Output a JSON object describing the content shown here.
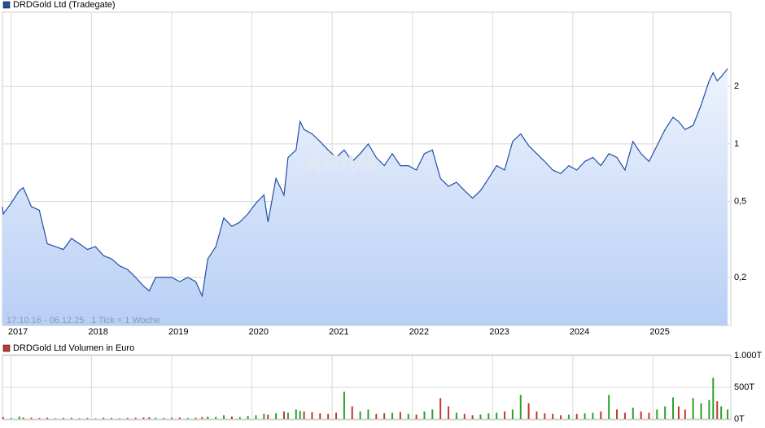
{
  "chart_data": [
    {
      "type": "line",
      "watermark": "ARIVA",
      "period_label": "17.10.16 - 06.12.25",
      "tick_label": "1 Tick = 1 Woche",
      "log_y": true,
      "grid": true,
      "xlim": [
        2016.89,
        2025.97
      ],
      "xticks": [
        2017,
        2018,
        2019,
        2020,
        2021,
        2022,
        2023,
        2024,
        2025
      ],
      "ylim": [
        0.112,
        4.9
      ],
      "yticks": [
        {
          "value": 0.2,
          "label": "0,2"
        },
        {
          "value": 0.5,
          "label": "0,5"
        },
        1,
        2
      ],
      "x": [
        2016.8,
        2016.9,
        2017.0,
        2017.1,
        2017.15,
        2017.25,
        2017.35,
        2017.45,
        2017.55,
        2017.65,
        2017.75,
        2017.85,
        2017.95,
        2018.05,
        2018.15,
        2018.25,
        2018.35,
        2018.45,
        2018.55,
        2018.65,
        2018.72,
        2018.8,
        2018.9,
        2019.0,
        2019.1,
        2019.2,
        2019.3,
        2019.38,
        2019.45,
        2019.55,
        2019.65,
        2019.75,
        2019.85,
        2019.95,
        2020.05,
        2020.15,
        2020.2,
        2020.3,
        2020.4,
        2020.45,
        2020.55,
        2020.6,
        2020.65,
        2020.75,
        2020.85,
        2020.95,
        2021.05,
        2021.15,
        2021.25,
        2021.35,
        2021.45,
        2021.55,
        2021.65,
        2021.75,
        2021.85,
        2021.95,
        2022.05,
        2022.15,
        2022.25,
        2022.35,
        2022.45,
        2022.55,
        2022.65,
        2022.75,
        2022.85,
        2022.95,
        2023.05,
        2023.15,
        2023.25,
        2023.35,
        2023.45,
        2023.55,
        2023.65,
        2023.75,
        2023.85,
        2023.95,
        2024.05,
        2024.15,
        2024.25,
        2024.35,
        2024.45,
        2024.55,
        2024.65,
        2024.75,
        2024.85,
        2024.95,
        2025.05,
        2025.15,
        2025.25,
        2025.32,
        2025.4,
        2025.5,
        2025.6,
        2025.7,
        2025.75,
        2025.8,
        2025.85,
        2025.93
      ],
      "series": [
        {
          "name": "DRDGold Ltd (Tradegate)",
          "color": "#1f4fa8",
          "values": [
            0.47,
            0.43,
            0.49,
            0.57,
            0.59,
            0.47,
            0.45,
            0.3,
            0.29,
            0.28,
            0.32,
            0.3,
            0.28,
            0.29,
            0.26,
            0.25,
            0.23,
            0.22,
            0.2,
            0.18,
            0.17,
            0.2,
            0.2,
            0.2,
            0.19,
            0.2,
            0.19,
            0.16,
            0.25,
            0.29,
            0.41,
            0.37,
            0.39,
            0.43,
            0.49,
            0.54,
            0.39,
            0.66,
            0.54,
            0.85,
            0.93,
            1.31,
            1.19,
            1.13,
            1.03,
            0.93,
            0.85,
            0.93,
            0.81,
            0.89,
            1.0,
            0.85,
            0.77,
            0.89,
            0.77,
            0.77,
            0.73,
            0.89,
            0.93,
            0.66,
            0.6,
            0.63,
            0.57,
            0.52,
            0.57,
            0.66,
            0.77,
            0.73,
            1.03,
            1.13,
            0.98,
            0.89,
            0.81,
            0.73,
            0.7,
            0.77,
            0.73,
            0.81,
            0.85,
            0.77,
            0.89,
            0.85,
            0.73,
            1.03,
            0.89,
            0.81,
            0.98,
            1.19,
            1.38,
            1.31,
            1.19,
            1.25,
            1.6,
            2.14,
            2.36,
            2.14,
            2.25,
            2.48
          ]
        }
      ]
    },
    {
      "type": "bar",
      "up_color": "#2ca02c",
      "grid": true,
      "xlim": [
        2016.89,
        2025.97
      ],
      "xticks": [
        2017,
        2018,
        2019,
        2020,
        2021,
        2022,
        2023,
        2024,
        2025
      ],
      "ylim": [
        0,
        1000
      ],
      "yticks": [
        {
          "value": 0,
          "label": "0T"
        },
        {
          "value": 500,
          "label": "500T"
        },
        {
          "value": 1000,
          "label": "1.000T"
        }
      ],
      "x": [
        2016.8,
        2016.9,
        2017.0,
        2017.1,
        2017.15,
        2017.25,
        2017.35,
        2017.45,
        2017.55,
        2017.65,
        2017.75,
        2017.85,
        2017.95,
        2018.05,
        2018.15,
        2018.25,
        2018.35,
        2018.45,
        2018.55,
        2018.65,
        2018.72,
        2018.8,
        2018.9,
        2019.0,
        2019.1,
        2019.2,
        2019.3,
        2019.38,
        2019.45,
        2019.55,
        2019.65,
        2019.75,
        2019.85,
        2019.95,
        2020.05,
        2020.15,
        2020.2,
        2020.3,
        2020.4,
        2020.45,
        2020.55,
        2020.6,
        2020.65,
        2020.75,
        2020.85,
        2020.95,
        2021.05,
        2021.15,
        2021.25,
        2021.35,
        2021.45,
        2021.55,
        2021.65,
        2021.75,
        2021.85,
        2021.95,
        2022.05,
        2022.15,
        2022.25,
        2022.35,
        2022.45,
        2022.55,
        2022.65,
        2022.75,
        2022.85,
        2022.95,
        2023.05,
        2023.15,
        2023.25,
        2023.35,
        2023.45,
        2023.55,
        2023.65,
        2023.75,
        2023.85,
        2023.95,
        2024.05,
        2024.15,
        2024.25,
        2024.35,
        2024.45,
        2024.55,
        2024.65,
        2024.75,
        2024.85,
        2024.95,
        2025.05,
        2025.15,
        2025.25,
        2025.32,
        2025.4,
        2025.5,
        2025.6,
        2025.7,
        2025.75,
        2025.8,
        2025.85,
        2025.93
      ],
      "series": [
        {
          "name": "DRDGold Ltd Volumen in Euro",
          "color": "#c0392b",
          "values": [
            20,
            30,
            15,
            40,
            25,
            20,
            15,
            20,
            10,
            15,
            20,
            10,
            15,
            10,
            20,
            15,
            10,
            15,
            20,
            25,
            30,
            20,
            15,
            20,
            25,
            15,
            20,
            30,
            40,
            35,
            60,
            40,
            30,
            50,
            60,
            80,
            70,
            90,
            120,
            100,
            150,
            130,
            120,
            110,
            90,
            80,
            100,
            430,
            200,
            120,
            150,
            80,
            90,
            100,
            110,
            80,
            70,
            120,
            150,
            330,
            200,
            100,
            80,
            60,
            70,
            90,
            100,
            120,
            150,
            380,
            250,
            120,
            90,
            80,
            60,
            70,
            80,
            90,
            100,
            120,
            380,
            150,
            100,
            180,
            120,
            100,
            150,
            200,
            340,
            200,
            150,
            330,
            250,
            300,
            650,
            280,
            200,
            150
          ]
        }
      ]
    }
  ]
}
